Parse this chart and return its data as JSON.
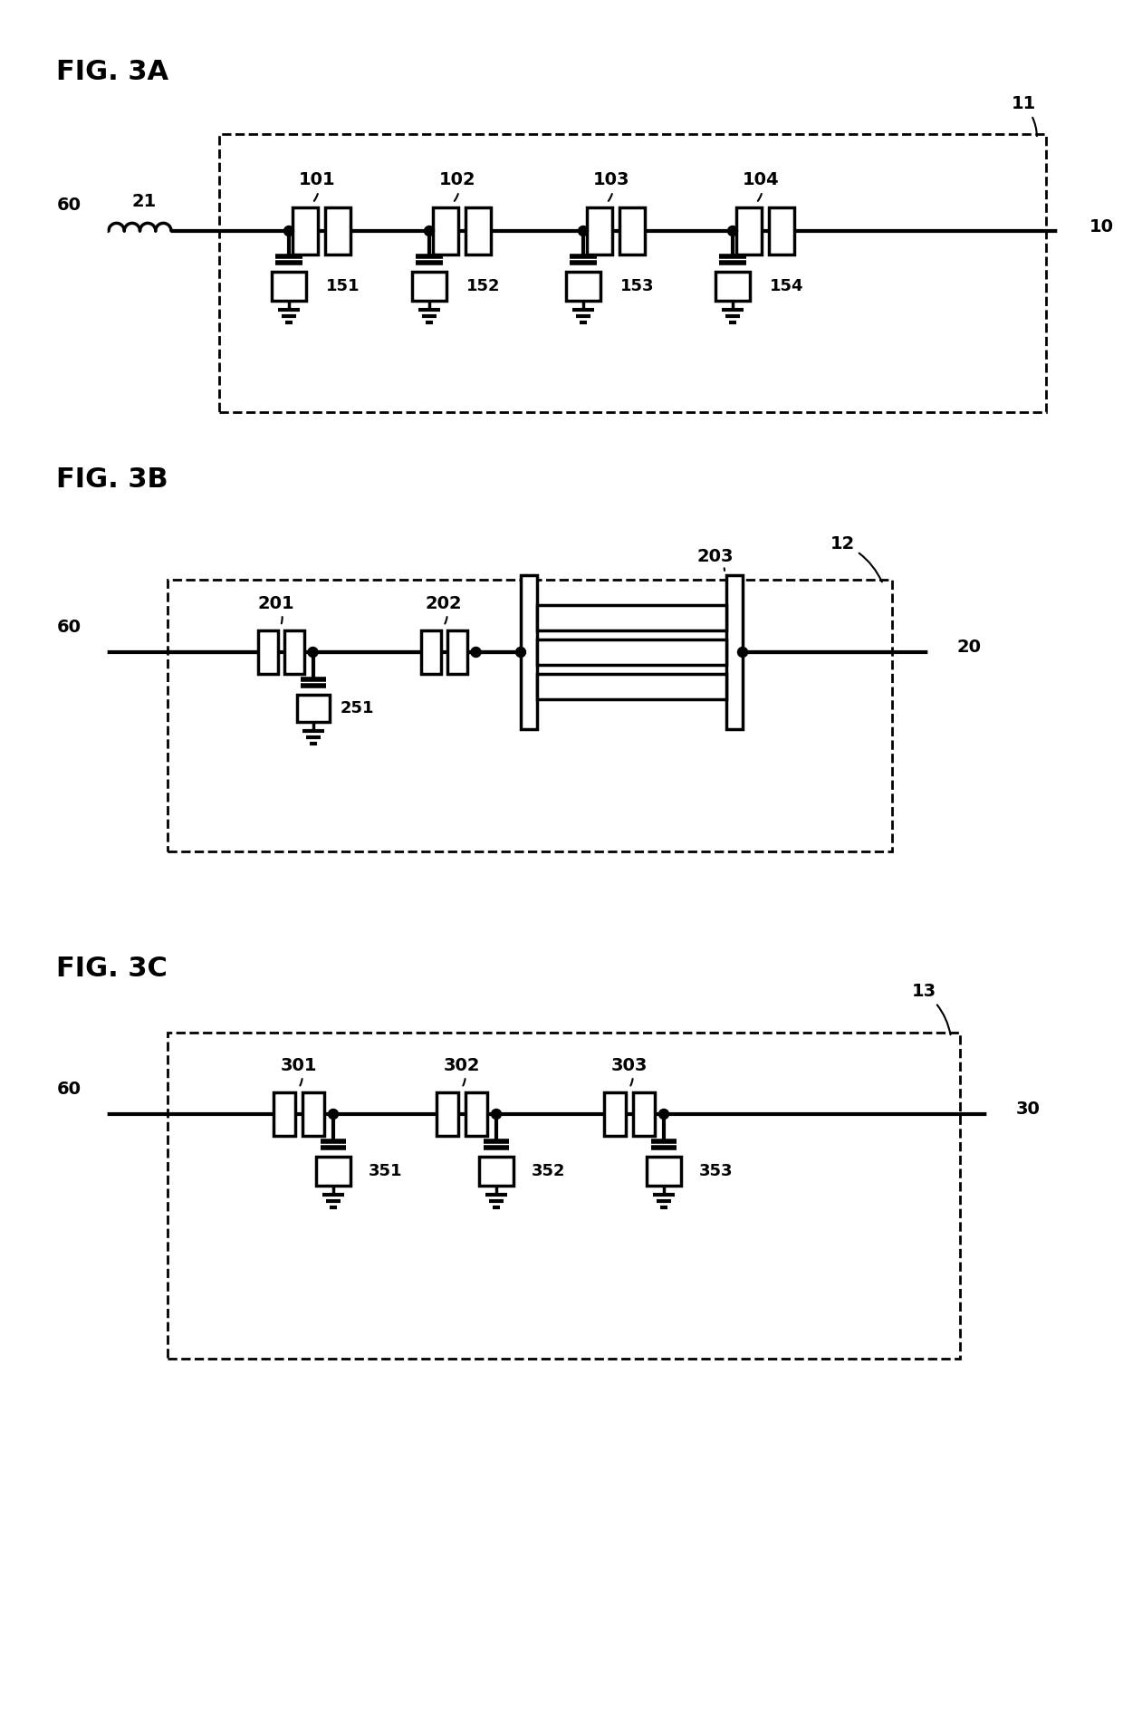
{
  "background_color": "#ffffff",
  "line_color": "#000000",
  "fig3a": {
    "title": "FIG. 3A",
    "box_label": "11",
    "port_label": "10",
    "inductor_label": "21",
    "antenna_label": "60",
    "series_labels": [
      "101",
      "102",
      "103",
      "104"
    ],
    "shunt_labels": [
      "151",
      "152",
      "153",
      "154"
    ]
  },
  "fig3b": {
    "title": "FIG. 3B",
    "box_label": "12",
    "port_label": "20",
    "antenna_label": "60",
    "series_labels": [
      "201",
      "202",
      "203"
    ],
    "shunt_label": "251"
  },
  "fig3c": {
    "title": "FIG. 3C",
    "box_label": "13",
    "port_label": "30",
    "antenna_label": "60",
    "series_labels": [
      "301",
      "302",
      "303"
    ],
    "shunt_labels": [
      "351",
      "352",
      "353"
    ]
  }
}
